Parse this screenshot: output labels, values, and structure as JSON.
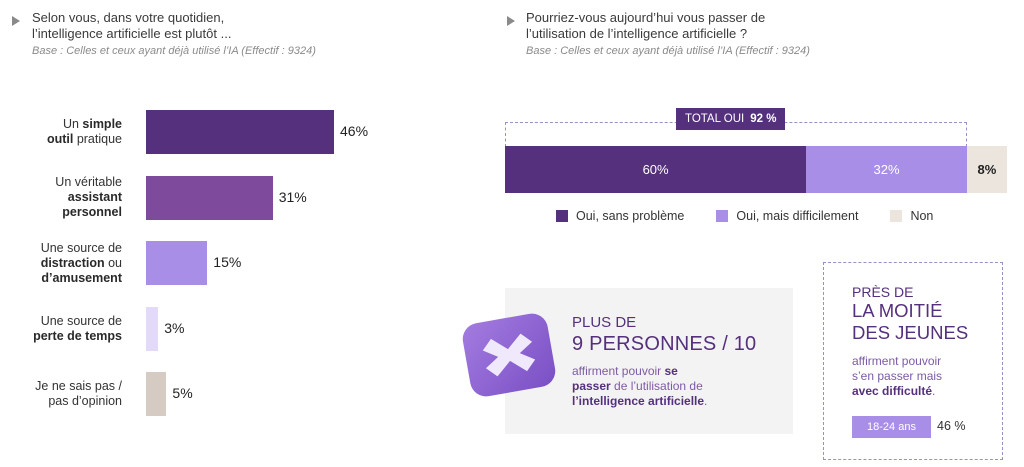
{
  "left": {
    "question_lines": [
      "Selon vous, dans votre quotidien,",
      "l’intelligence artificielle est plutôt ..."
    ],
    "base": "Base : Celles et ceux ayant déjà utilisé l’IA (Effectif : 9324)"
  },
  "right": {
    "question_lines": [
      "Pourriez-vous aujourd’hui vous passer de",
      "l’utilisation de l’intelligence artificielle ?"
    ],
    "base": "Base : Celles et ceux ayant déjà utilisé l’IA (Effectif : 9324)",
    "total_label": "TOTAL OUI",
    "total_value": "92 %",
    "legend": [
      "Oui, sans problème",
      "Oui, mais difficilement",
      "Non"
    ]
  },
  "callout_left": {
    "line1": "PLUS DE",
    "line2": "9 PERSONNES / 10",
    "text1": "affirment pouvoir ",
    "text1_bold": "se",
    "text2_bold": "passer",
    "text2": " de l’utilisation de",
    "text3_bold": "l’intelligence artificielle",
    "text3": "."
  },
  "callout_right": {
    "line1": "PRÈS DE",
    "line2": "LA MOITIÉ",
    "line3": "DES JEUNES",
    "text1": "affirment pouvoir",
    "text2": "s’en passer mais",
    "text3_bold": "avec difficulté",
    "text3": ".",
    "badge": "18-24 ans",
    "badge_value": "46 %"
  },
  "colors": {
    "dark": "#55307d",
    "mid": "#7d4a9c",
    "light": "#a98ee8",
    "pale": "#e3d9f8",
    "grey": "#d5cbc2",
    "none": "#ece5dd"
  },
  "chart_data": [
    {
      "type": "bar",
      "orientation": "horizontal",
      "categories": [
        [
          {
            "t": "Un ",
            "b": false
          },
          {
            "t": "simple",
            "b": true
          },
          {
            "t": "|",
            "b": false
          },
          {
            "t": "outil",
            "b": true
          },
          {
            "t": " pratique",
            "b": false
          }
        ],
        [
          {
            "t": "Un véritable",
            "b": false
          },
          {
            "t": "|",
            "b": false
          },
          {
            "t": "assistant",
            "b": true
          },
          {
            "t": "|",
            "b": false
          },
          {
            "t": "personnel",
            "b": true
          }
        ],
        [
          {
            "t": "Une source de",
            "b": false
          },
          {
            "t": "|",
            "b": false
          },
          {
            "t": "distraction",
            "b": true
          },
          {
            "t": " ou",
            "b": false
          },
          {
            "t": "|",
            "b": false
          },
          {
            "t": "d’amusement",
            "b": true
          }
        ],
        [
          {
            "t": "Une source de",
            "b": false
          },
          {
            "t": "|",
            "b": false
          },
          {
            "t": "perte de temps",
            "b": true
          }
        ],
        [
          {
            "t": "Je ne sais pas /",
            "b": false
          },
          {
            "t": "|",
            "b": false
          },
          {
            "t": "pas d’opinion",
            "b": false
          }
        ]
      ],
      "values": [
        46,
        31,
        15,
        3,
        5
      ],
      "value_labels": [
        "46%",
        "31%",
        "15%",
        "3%",
        "5%"
      ],
      "colors": [
        "#55307d",
        "#7d4a9c",
        "#a98ee8",
        "#e3d9f8",
        "#d5cbc2"
      ]
    },
    {
      "type": "bar",
      "orientation": "stacked-horizontal",
      "series": [
        {
          "name": "Oui, sans problème",
          "value": 60,
          "label": "60%"
        },
        {
          "name": "Oui, mais difficilement",
          "value": 32,
          "label": "32%"
        },
        {
          "name": "Non",
          "value": 8,
          "label": "8%"
        }
      ]
    }
  ]
}
